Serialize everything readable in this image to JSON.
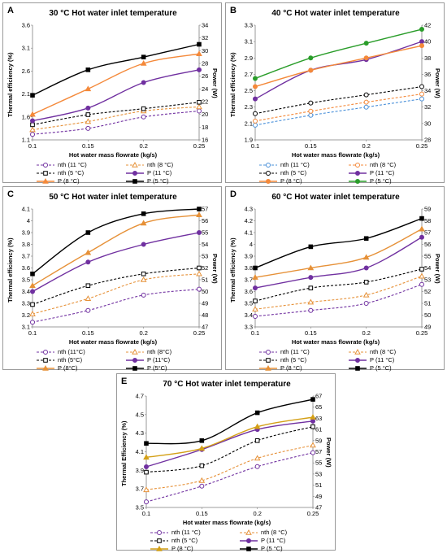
{
  "panels": [
    {
      "label": "A",
      "title": "30 °C Hot water inlet temperature",
      "xlabel": "Hot water mass flowrate (kg/s)",
      "ylabel_left": "Thermal efficiency (%)",
      "ylabel_right": "Power (W)",
      "legend": [
        "nth (11 °C)",
        "nth (8 °C)",
        "nth (5 °C)",
        "P (11 °C)",
        "P (8 °C)",
        "P (5 °C)"
      ]
    },
    {
      "label": "B",
      "title": "40 °C Hot water inlet temperature",
      "xlabel": "Hot water mass flowrate (kg/s)",
      "ylabel_left": "Thermal efficiency (%)",
      "ylabel_right": "Power (W)",
      "legend": [
        "nth (11 °C)",
        "nth (8 °C)",
        "nth (5 °C)",
        "P (11 °C)",
        "P (8 °C)",
        "P (5 °C)"
      ]
    },
    {
      "label": "C",
      "title": "50 °C Hot water inlet temperature",
      "xlabel": "Hot water mass flowrate (kg/s)",
      "ylabel_left": "Thermal efficiency (%)",
      "ylabel_right": "Power (W)",
      "legend": [
        "nth (11°C)",
        "nth (8°C)",
        "nth (5°C)",
        "P (11°C)",
        "P (8°C)",
        "P (5°C)"
      ]
    },
    {
      "label": "D",
      "title": "60 °C Hot water inlet temperature",
      "xlabel": "Hot water mass flowrate (kg/s)",
      "ylabel_left": "Thermal efficiency (%)",
      "ylabel_right": "Power (W)",
      "legend": [
        "nth (11 °C)",
        "nth (8 °C)",
        "nth (5 °C)",
        "P (11 °C)",
        "P (8 °C)",
        "P (5 °C)"
      ]
    },
    {
      "label": "E",
      "title": "70 °C Hot water inlet temperature",
      "xlabel": "Hot water mass flowrate (kg/s)",
      "ylabel_left": "Thermal Efficiency (%)",
      "ylabel_right": "Power (W)",
      "legend": [
        "nth (11 °C)",
        "nth (8 °C)",
        "nth (5 °C)",
        "P (11 °C)",
        "P (8 °C)",
        "P (5 °C)"
      ]
    }
  ],
  "chart_data": [
    {
      "type": "line",
      "x": [
        0.1,
        0.15,
        0.2,
        0.25
      ],
      "xticks": [
        "0.1",
        "0.15",
        "0.2",
        "0.25"
      ],
      "ylim_left": [
        1.1,
        3.6
      ],
      "yticks_left": [
        "1.1",
        "1.6",
        "2.1",
        "2.6",
        "3.1",
        "3.6"
      ],
      "ylim_right": [
        16,
        34
      ],
      "yticks_right": [
        "16",
        "18",
        "20",
        "22",
        "24",
        "26",
        "28",
        "30",
        "32",
        "34"
      ],
      "series": [
        {
          "name": "nth (11 °C)",
          "axis": "left",
          "color": "#7030a0",
          "dash": true,
          "marker": "circle",
          "values": [
            1.22,
            1.35,
            1.6,
            1.73
          ]
        },
        {
          "name": "nth (8 °C)",
          "axis": "left",
          "color": "#e69138",
          "dash": true,
          "marker": "triangle",
          "values": [
            1.32,
            1.5,
            1.73,
            1.82
          ]
        },
        {
          "name": "nth (5 °C)",
          "axis": "left",
          "color": "#000000",
          "dash": true,
          "marker": "square",
          "values": [
            1.43,
            1.65,
            1.78,
            1.92
          ]
        },
        {
          "name": "P (11 °C)",
          "axis": "right",
          "color": "#7030a0",
          "dash": false,
          "marker": "circle",
          "values": [
            19.0,
            21.0,
            25.0,
            27.0
          ]
        },
        {
          "name": "P (8 °C)",
          "axis": "right",
          "color": "#f4893a",
          "dash": false,
          "marker": "triangle",
          "values": [
            20.0,
            24.0,
            28.0,
            29.5
          ]
        },
        {
          "name": "P (5 °C)",
          "axis": "right",
          "color": "#000000",
          "dash": false,
          "marker": "square",
          "values": [
            23.0,
            27.0,
            29.0,
            31.0
          ]
        }
      ]
    },
    {
      "type": "line",
      "x": [
        0.1,
        0.15,
        0.2,
        0.25
      ],
      "xticks": [
        "0.1",
        "0.15",
        "0.2",
        "0.25"
      ],
      "ylim_left": [
        1.9,
        3.3
      ],
      "yticks_left": [
        "1.9",
        "2.1",
        "2.3",
        "2.5",
        "2.7",
        "2.9",
        "3.1",
        "3.3"
      ],
      "ylim_right": [
        28,
        42
      ],
      "yticks_right": [
        "28",
        "30",
        "32",
        "34",
        "36",
        "38",
        "40",
        "42"
      ],
      "series": [
        {
          "name": "nth (11 °C)",
          "axis": "left",
          "color": "#4a90d9",
          "dash": true,
          "marker": "circle",
          "values": [
            2.08,
            2.2,
            2.3,
            2.4
          ]
        },
        {
          "name": "nth (8 °C)",
          "axis": "left",
          "color": "#f4893a",
          "dash": true,
          "marker": "circle",
          "values": [
            2.13,
            2.25,
            2.36,
            2.46
          ]
        },
        {
          "name": "nth (5 °C)",
          "axis": "left",
          "color": "#000000",
          "dash": true,
          "marker": "circle",
          "values": [
            2.22,
            2.35,
            2.45,
            2.55
          ]
        },
        {
          "name": "P (11 °C)",
          "axis": "right",
          "color": "#7030a0",
          "dash": false,
          "marker": "circle",
          "values": [
            33.0,
            36.5,
            37.8,
            40.0
          ]
        },
        {
          "name": "P (8 °C)",
          "axis": "right",
          "color": "#f4893a",
          "dash": false,
          "marker": "circle",
          "values": [
            34.5,
            36.5,
            38.0,
            39.5
          ]
        },
        {
          "name": "P (5 °C)",
          "axis": "right",
          "color": "#2a9d2a",
          "dash": false,
          "marker": "circle",
          "values": [
            35.5,
            38.0,
            39.8,
            41.5
          ]
        }
      ]
    },
    {
      "type": "line",
      "x": [
        0.1,
        0.15,
        0.2,
        0.25
      ],
      "xticks": [
        "0.1",
        "0.15",
        "0.2",
        "0.25"
      ],
      "ylim_left": [
        3.1,
        4.1
      ],
      "yticks_left": [
        "3.1",
        "3.2",
        "3.3",
        "3.4",
        "3.5",
        "3.6",
        "3.7",
        "3.8",
        "3.9",
        "4",
        "4.1"
      ],
      "ylim_right": [
        47,
        57
      ],
      "yticks_right": [
        "47",
        "48",
        "49",
        "50",
        "51",
        "52",
        "53",
        "54",
        "55",
        "56",
        "57"
      ],
      "series": [
        {
          "name": "nth (11°C)",
          "axis": "left",
          "color": "#7030a0",
          "dash": true,
          "marker": "circle",
          "values": [
            3.14,
            3.24,
            3.37,
            3.42
          ]
        },
        {
          "name": "nth (8°C)",
          "axis": "left",
          "color": "#e69138",
          "dash": true,
          "marker": "triangle",
          "values": [
            3.21,
            3.34,
            3.5,
            3.55
          ]
        },
        {
          "name": "nth (5°C)",
          "axis": "left",
          "color": "#000000",
          "dash": true,
          "marker": "square",
          "values": [
            3.29,
            3.45,
            3.55,
            3.6
          ]
        },
        {
          "name": "P (11°C)",
          "axis": "right",
          "color": "#7030a0",
          "dash": false,
          "marker": "circle",
          "values": [
            50.0,
            52.5,
            54.0,
            55.0
          ]
        },
        {
          "name": "P (8°C)",
          "axis": "right",
          "color": "#e69138",
          "dash": false,
          "marker": "triangle",
          "values": [
            50.5,
            53.3,
            55.8,
            56.5
          ]
        },
        {
          "name": "P (5°C)",
          "axis": "right",
          "color": "#000000",
          "dash": false,
          "marker": "square",
          "values": [
            51.5,
            55.0,
            56.6,
            57.0
          ]
        }
      ]
    },
    {
      "type": "line",
      "x": [
        0.1,
        0.15,
        0.2,
        0.25
      ],
      "xticks": [
        "0.1",
        "0.15",
        "0.2",
        "0.25"
      ],
      "ylim_left": [
        3.3,
        4.3
      ],
      "yticks_left": [
        "3.3",
        "3.4",
        "3.5",
        "3.6",
        "3.7",
        "3.8",
        "3.9",
        "4",
        "4.1",
        "4.2",
        "4.3"
      ],
      "ylim_right": [
        49,
        59
      ],
      "yticks_right": [
        "49",
        "50",
        "51",
        "52",
        "53",
        "54",
        "55",
        "56",
        "57",
        "58",
        "59"
      ],
      "series": [
        {
          "name": "nth (11 °C)",
          "axis": "left",
          "color": "#7030a0",
          "dash": true,
          "marker": "circle",
          "values": [
            3.39,
            3.44,
            3.5,
            3.66
          ]
        },
        {
          "name": "nth (8 °C)",
          "axis": "left",
          "color": "#e69138",
          "dash": true,
          "marker": "triangle",
          "values": [
            3.45,
            3.51,
            3.57,
            3.73
          ]
        },
        {
          "name": "nth (5 °C)",
          "axis": "left",
          "color": "#000000",
          "dash": true,
          "marker": "square",
          "values": [
            3.52,
            3.63,
            3.68,
            3.79
          ]
        },
        {
          "name": "P (11 °C)",
          "axis": "right",
          "color": "#7030a0",
          "dash": false,
          "marker": "circle",
          "values": [
            52.3,
            53.2,
            54.0,
            56.6
          ]
        },
        {
          "name": "P (8 °C)",
          "axis": "right",
          "color": "#e69138",
          "dash": false,
          "marker": "triangle",
          "values": [
            53.2,
            54.0,
            54.9,
            57.3
          ]
        },
        {
          "name": "P (5 °C)",
          "axis": "right",
          "color": "#000000",
          "dash": false,
          "marker": "square",
          "values": [
            54.0,
            55.8,
            56.5,
            58.2
          ]
        }
      ]
    },
    {
      "type": "line",
      "x": [
        0.1,
        0.15,
        0.2,
        0.25
      ],
      "xticks": [
        "0.1",
        "0.15",
        "0.2",
        "0.25"
      ],
      "ylim_left": [
        3.5,
        4.7
      ],
      "yticks_left": [
        "3.5",
        "3.7",
        "3.9",
        "4.1",
        "4.3",
        "4.5",
        "4.7"
      ],
      "ylim_right": [
        47,
        67
      ],
      "yticks_right": [
        "47",
        "49",
        "51",
        "53",
        "55",
        "57",
        "59",
        "61",
        "63",
        "65",
        "67"
      ],
      "series": [
        {
          "name": "nth (11 °C)",
          "axis": "left",
          "color": "#7030a0",
          "dash": true,
          "marker": "circle",
          "values": [
            3.56,
            3.73,
            3.94,
            4.09
          ]
        },
        {
          "name": "nth (8 °C)",
          "axis": "left",
          "color": "#e69138",
          "dash": true,
          "marker": "triangle",
          "values": [
            3.69,
            3.79,
            4.03,
            4.17
          ]
        },
        {
          "name": "nth (5 °C)",
          "axis": "left",
          "color": "#000000",
          "dash": true,
          "marker": "square",
          "values": [
            3.88,
            3.95,
            4.22,
            4.37
          ]
        },
        {
          "name": "P (11 °C)",
          "axis": "right",
          "color": "#7030a0",
          "dash": false,
          "marker": "circle",
          "values": [
            54.3,
            57.4,
            61.0,
            62.5
          ]
        },
        {
          "name": "P (8 °C)",
          "axis": "right",
          "color": "#d4a017",
          "dash": false,
          "marker": "triangle",
          "values": [
            56.0,
            57.6,
            61.5,
            63.2
          ]
        },
        {
          "name": "P (5 °C)",
          "axis": "right",
          "color": "#000000",
          "dash": false,
          "marker": "square",
          "values": [
            58.5,
            59.0,
            64.0,
            66.4
          ]
        }
      ]
    }
  ]
}
